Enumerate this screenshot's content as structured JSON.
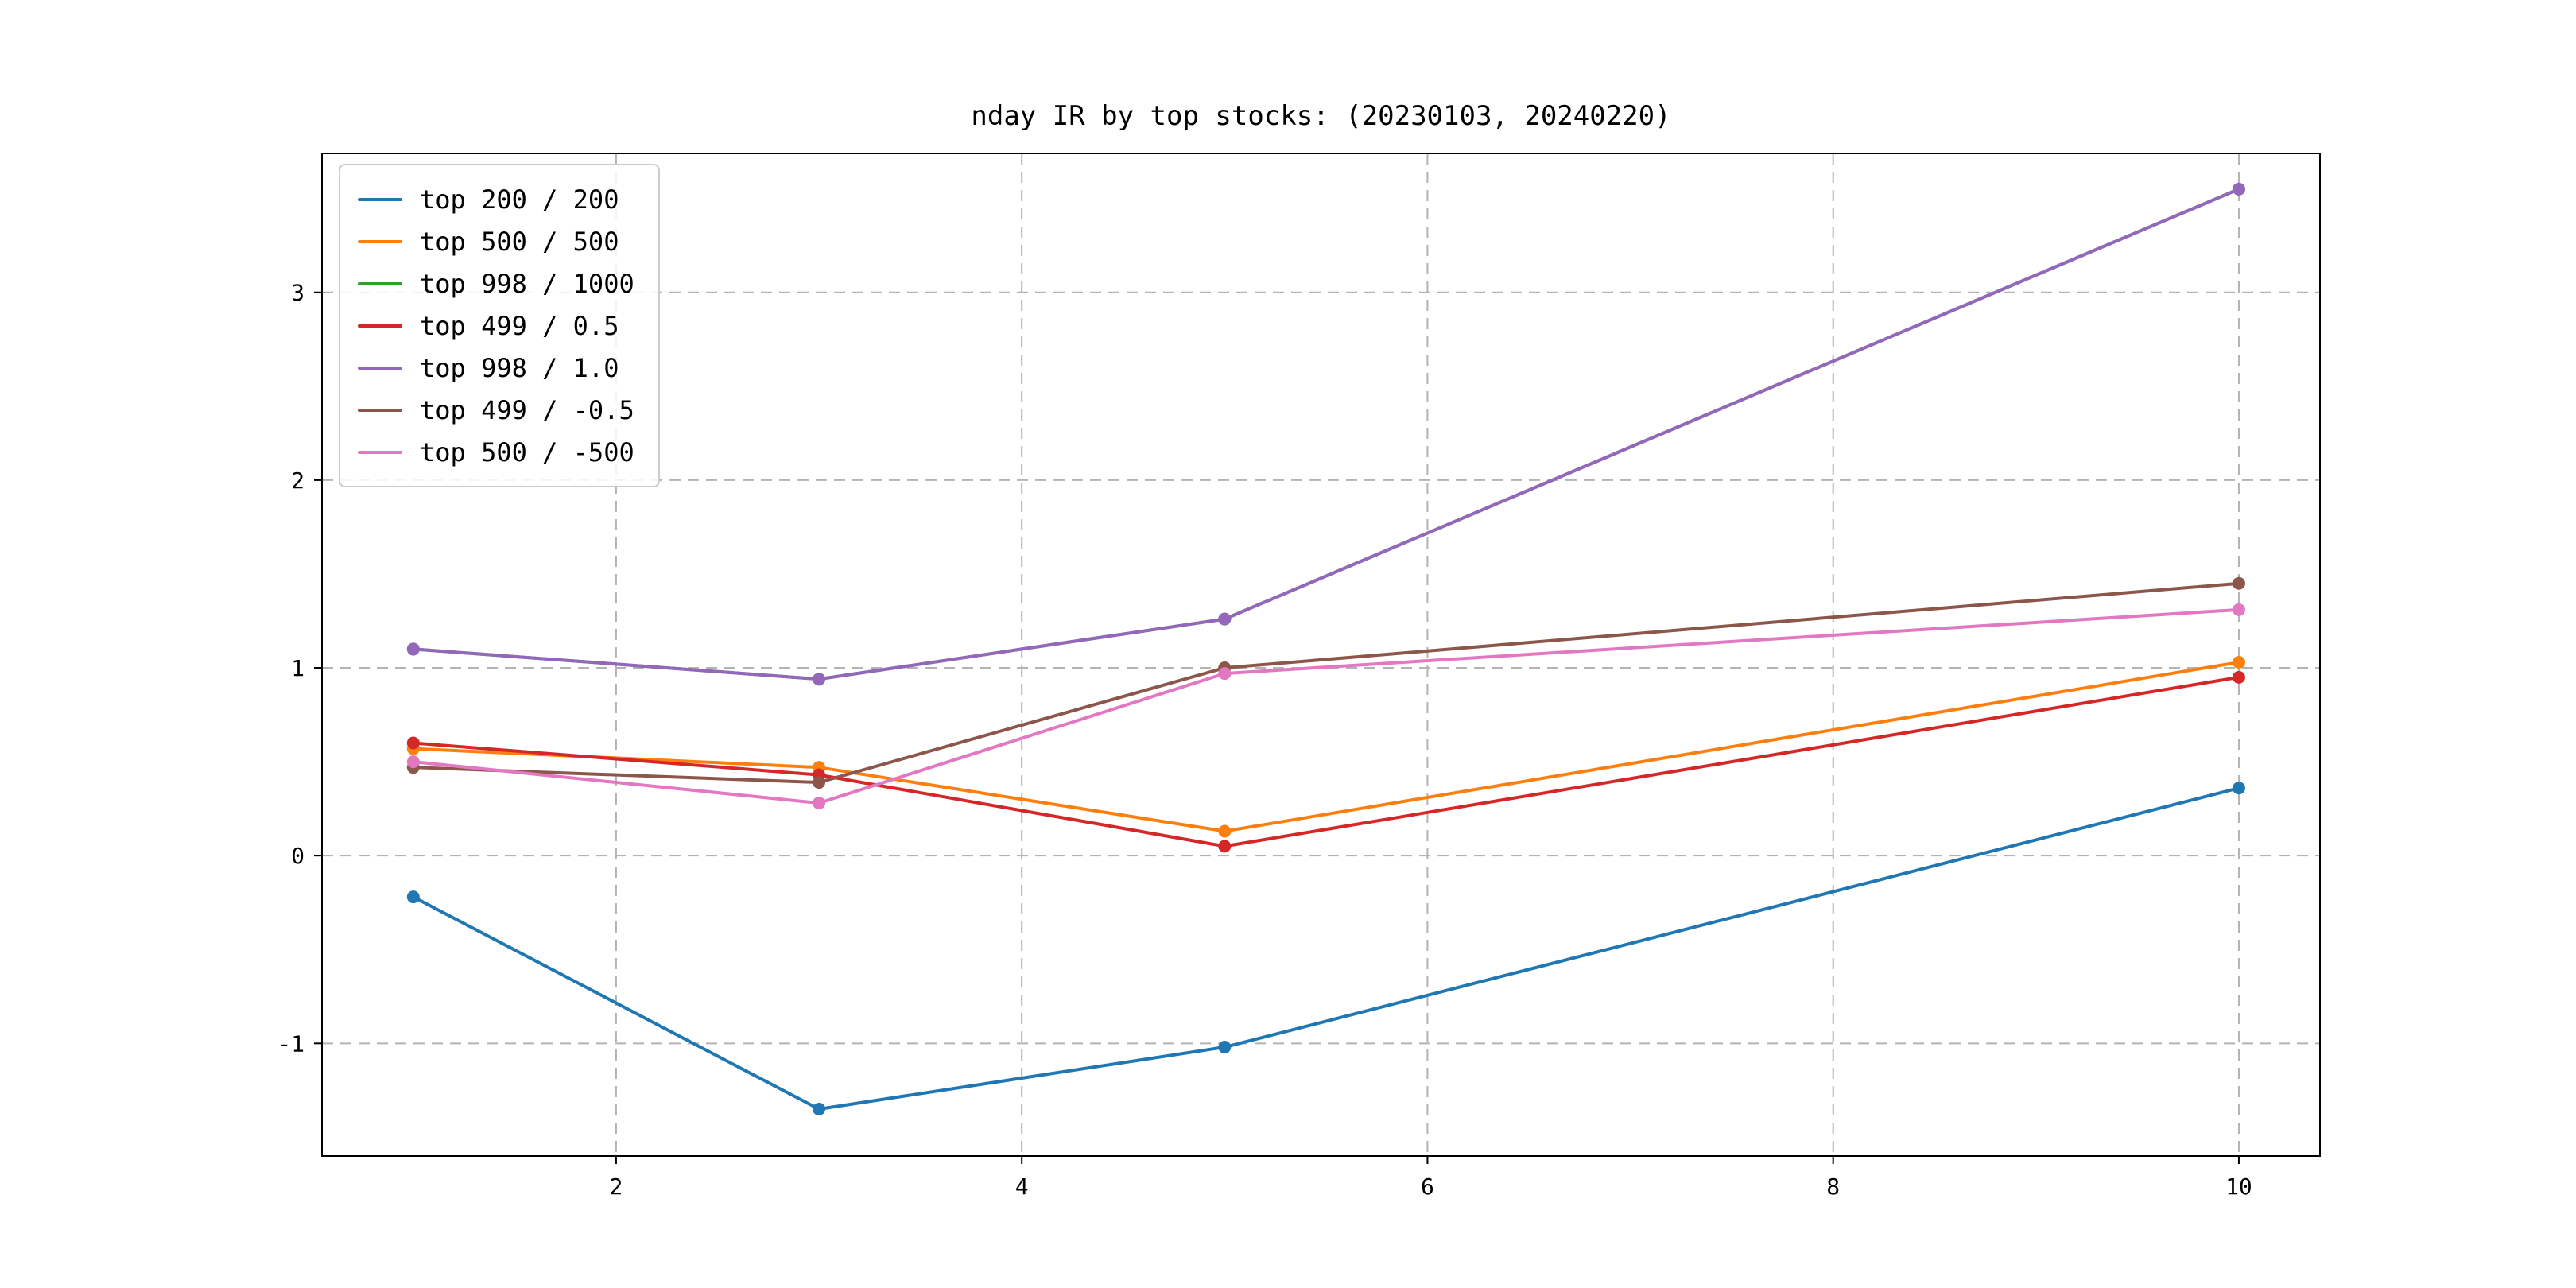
{
  "chart_data": {
    "type": "line",
    "title": "nday IR by top stocks: (20230103, 20240220)",
    "xlabel": "",
    "ylabel": "",
    "x": [
      1,
      3,
      5,
      10
    ],
    "series": [
      {
        "name": "top 200 / 200",
        "color": "#1f77b4",
        "values": [
          -0.22,
          -1.35,
          -1.02,
          0.36
        ]
      },
      {
        "name": "top 500 / 500",
        "color": "#ff7f0e",
        "values": [
          0.57,
          0.47,
          0.13,
          1.03
        ]
      },
      {
        "name": "top 998 / 1000",
        "color": "#2ca02c",
        "values": [
          1.1,
          0.94,
          1.26,
          3.55
        ]
      },
      {
        "name": "top 499 / 0.5",
        "color": "#d62728",
        "values": [
          0.6,
          0.43,
          0.05,
          0.95
        ]
      },
      {
        "name": "top 998 / 1.0",
        "color": "#9467bd",
        "values": [
          1.1,
          0.94,
          1.26,
          3.55
        ]
      },
      {
        "name": "top 499 / -0.5",
        "color": "#8c564b",
        "values": [
          0.47,
          0.39,
          1.0,
          1.45
        ]
      },
      {
        "name": "top 500 / -500",
        "color": "#e377c2",
        "values": [
          0.5,
          0.28,
          0.97,
          1.31
        ]
      }
    ],
    "xticks": [
      2,
      4,
      6,
      8,
      10
    ],
    "yticks": [
      -1,
      0,
      1,
      2,
      3
    ],
    "xlim": [
      0.55,
      10.4
    ],
    "ylim": [
      -1.6,
      3.74
    ],
    "grid": true,
    "grid_style": "dashed",
    "grid_color": "#b3b3b3",
    "marker": "o",
    "legend_position": "upper left"
  }
}
